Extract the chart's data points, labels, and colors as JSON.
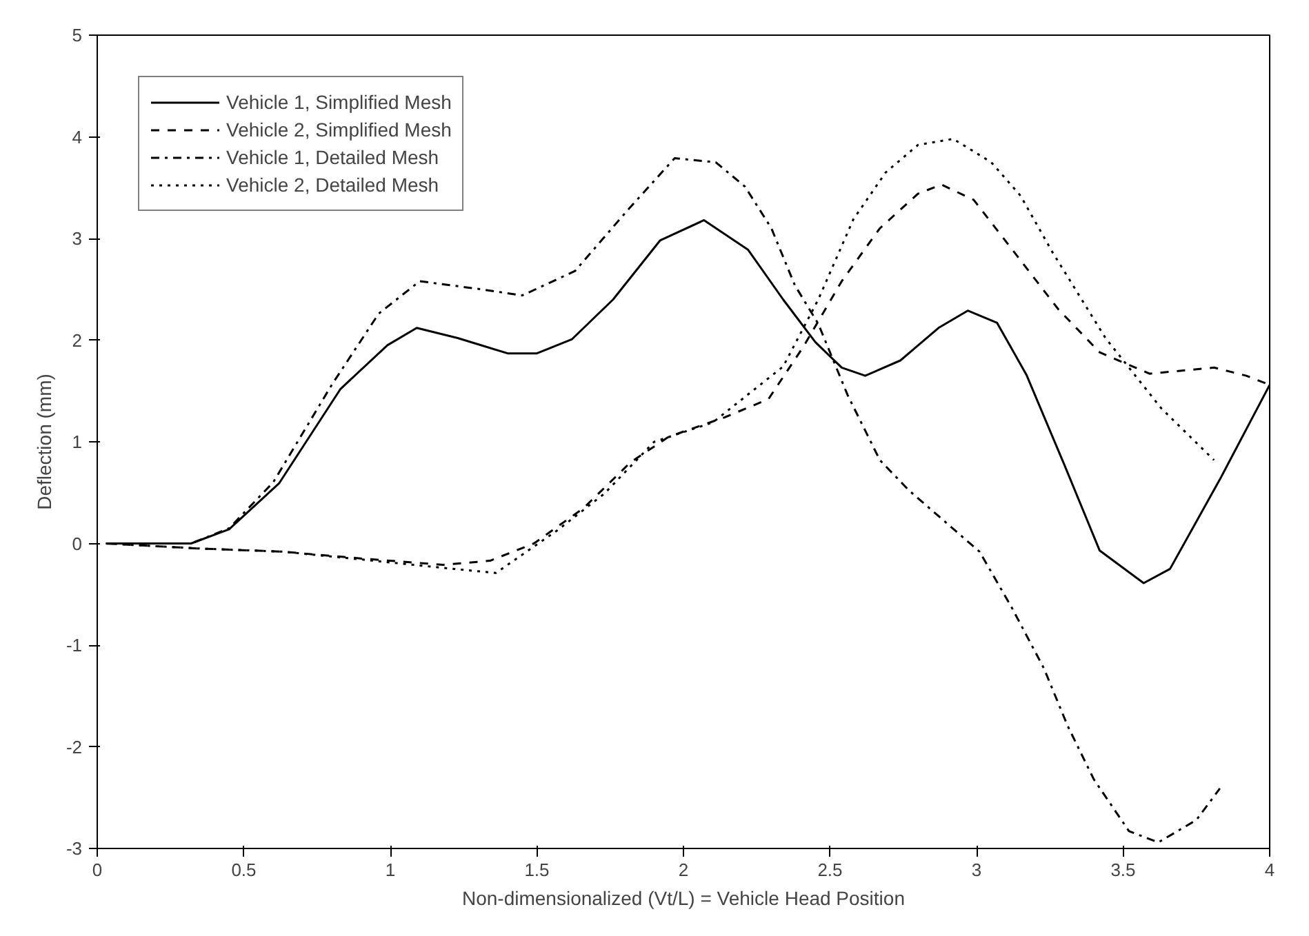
{
  "chart_data": {
    "type": "line",
    "xlabel": "Non-dimensionalized (Vt/L) = Vehicle Head Position",
    "ylabel": "Deflection (mm)",
    "xlim": [
      0,
      4
    ],
    "xticks": [
      0,
      0.5,
      1,
      1.5,
      2,
      2.5,
      3,
      3.5,
      4
    ],
    "ylim": [
      -3,
      5
    ],
    "yticks": [
      -3,
      -2,
      -1,
      0,
      1,
      2,
      3,
      4,
      5
    ],
    "grid": false,
    "legend": "top left",
    "marker": "none",
    "series": [
      {
        "name": "Vehicle 1, Simplified Mesh",
        "color": "#000000",
        "line_style": "solid",
        "x": [
          0.03,
          0.32,
          0.45,
          0.62,
          0.83,
          0.99,
          1.09,
          1.23,
          1.4,
          1.5,
          1.62,
          1.76,
          1.92,
          2.07,
          2.22,
          2.34,
          2.45,
          2.54,
          2.62,
          2.74,
          2.87,
          2.97,
          3.07,
          3.17,
          3.3,
          3.42,
          3.57,
          3.66,
          3.83,
          4.0
        ],
        "values": [
          0,
          0,
          0.14,
          0.59,
          1.52,
          1.95,
          2.12,
          2.02,
          1.87,
          1.87,
          2.01,
          2.4,
          2.98,
          3.18,
          2.89,
          2.4,
          1.98,
          1.73,
          1.65,
          1.8,
          2.12,
          2.29,
          2.17,
          1.66,
          0.77,
          -0.07,
          -0.39,
          -0.25,
          0.63,
          1.56
        ]
      },
      {
        "name": "Vehicle 2, Simplified Mesh",
        "color": "#000000",
        "line_style": "dashed",
        "x": [
          0.03,
          0.35,
          0.63,
          0.91,
          1.18,
          1.34,
          1.49,
          1.66,
          1.82,
          1.95,
          2.14,
          2.29,
          2.41,
          2.54,
          2.67,
          2.8,
          2.88,
          2.99,
          3.13,
          3.28,
          3.42,
          3.59,
          3.81,
          3.92,
          4.0
        ],
        "values": [
          0,
          -0.05,
          -0.08,
          -0.15,
          -0.21,
          -0.17,
          0.0,
          0.35,
          0.8,
          1.05,
          1.24,
          1.42,
          1.94,
          2.58,
          3.1,
          3.44,
          3.53,
          3.38,
          2.86,
          2.3,
          1.88,
          1.67,
          1.73,
          1.65,
          1.56
        ]
      },
      {
        "name": "Vehicle 1, Detailed Mesh",
        "color": "#000000",
        "line_style": "dashdot",
        "x": [
          0.03,
          0.32,
          0.45,
          0.6,
          0.8,
          0.96,
          1.1,
          1.31,
          1.45,
          1.63,
          1.81,
          1.97,
          2.11,
          2.21,
          2.3,
          2.38,
          2.46,
          2.56,
          2.67,
          2.77,
          2.91,
          3.01,
          3.12,
          3.23,
          3.31,
          3.4,
          3.52,
          3.62,
          3.75,
          3.83
        ],
        "values": [
          0,
          0,
          0.15,
          0.6,
          1.56,
          2.26,
          2.58,
          2.5,
          2.44,
          2.68,
          3.28,
          3.79,
          3.75,
          3.51,
          3.1,
          2.54,
          2.16,
          1.46,
          0.82,
          0.52,
          0.17,
          -0.08,
          -0.63,
          -1.23,
          -1.79,
          -2.32,
          -2.83,
          -2.94,
          -2.72,
          -2.41
        ]
      },
      {
        "name": "Vehicle 2, Detailed Mesh",
        "color": "#000000",
        "line_style": "dotted",
        "x": [
          0.03,
          0.35,
          0.63,
          0.91,
          1.18,
          1.36,
          1.57,
          1.73,
          1.9,
          2.1,
          2.34,
          2.46,
          2.58,
          2.69,
          2.8,
          2.92,
          3.05,
          3.15,
          3.26,
          3.44,
          3.63,
          3.81
        ],
        "values": [
          0,
          -0.05,
          -0.08,
          -0.16,
          -0.24,
          -0.29,
          0.13,
          0.49,
          1.0,
          1.19,
          1.74,
          2.4,
          3.19,
          3.65,
          3.92,
          3.98,
          3.75,
          3.42,
          2.86,
          2.02,
          1.33,
          0.82
        ]
      }
    ]
  }
}
